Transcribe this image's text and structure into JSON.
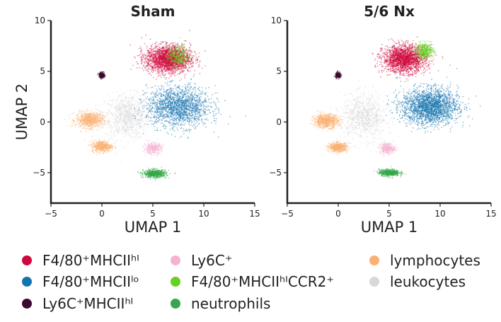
{
  "chart_data": [
    {
      "type": "scatter",
      "title": "Sham",
      "xlabel": "UMAP 1",
      "ylabel": "UMAP 2",
      "xlim": [
        -5,
        15
      ],
      "ylim": [
        -8,
        10
      ],
      "xticks": [
        -5,
        0,
        5,
        10,
        15
      ],
      "yticks": [
        -5,
        0,
        5,
        10
      ],
      "grid": false,
      "clusters": [
        {
          "series": "F4/80⁺MHCIIʰᴵ",
          "center": [
            6.5,
            6.2
          ],
          "spread": [
            2.0,
            1.2
          ],
          "density": 1.0
        },
        {
          "series": "F4/80⁺MHCIIˡᵒ",
          "center": [
            7.5,
            1.5
          ],
          "spread": [
            2.8,
            1.8
          ],
          "density": 0.8
        },
        {
          "series": "Ly6C⁺MHCIIʰᴵ",
          "center": [
            0.0,
            4.6
          ],
          "spread": [
            0.25,
            0.25
          ],
          "density": 0.3
        },
        {
          "series": "Ly6C⁺",
          "center": [
            5.0,
            -2.6
          ],
          "spread": [
            0.8,
            0.5
          ],
          "density": 0.4
        },
        {
          "series": "F4/80⁺MHCIIʰᴵCCR2⁺",
          "center": [
            7.5,
            6.5
          ],
          "spread": [
            1.0,
            0.9
          ],
          "density": 0.4
        },
        {
          "series": "neutrophils",
          "center": [
            5.2,
            -5.1
          ],
          "spread": [
            1.0,
            0.35
          ],
          "density": 0.8
        },
        {
          "series": "lymphocytes",
          "center": [
            -1.2,
            0.2
          ],
          "spread": [
            1.2,
            0.7
          ],
          "density": 0.9
        },
        {
          "series": "lymphocytes",
          "center": [
            0.0,
            -2.4
          ],
          "spread": [
            0.9,
            0.5
          ],
          "density": 0.6
        },
        {
          "series": "leukocytes",
          "center": [
            2.5,
            0.5
          ],
          "spread": [
            2.0,
            2.0
          ],
          "density": 0.4
        }
      ]
    },
    {
      "type": "scatter",
      "title": "5/6 Nx",
      "xlabel": "UMAP 1",
      "ylabel": "",
      "xlim": [
        -5,
        15
      ],
      "ylim": [
        -8,
        10
      ],
      "xticks": [
        -5,
        0,
        5,
        10,
        15
      ],
      "yticks": [
        -5,
        0,
        5,
        10
      ],
      "grid": false,
      "clusters": [
        {
          "series": "F4/80⁺MHCIIʰᴵ",
          "center": [
            6.5,
            6.2
          ],
          "spread": [
            1.9,
            1.2
          ],
          "density": 0.9
        },
        {
          "series": "F4/80⁺MHCIIˡᵒ",
          "center": [
            9.0,
            1.5
          ],
          "spread": [
            2.5,
            1.6
          ],
          "density": 1.0
        },
        {
          "series": "Ly6C⁺MHCIIʰᴵ",
          "center": [
            0.0,
            4.6
          ],
          "spread": [
            0.25,
            0.25
          ],
          "density": 0.3
        },
        {
          "series": "Ly6C⁺",
          "center": [
            4.8,
            -2.6
          ],
          "spread": [
            0.7,
            0.5
          ],
          "density": 0.4
        },
        {
          "series": "F4/80⁺MHCIIʰᴵCCR2⁺",
          "center": [
            8.5,
            7.0
          ],
          "spread": [
            0.8,
            0.7
          ],
          "density": 0.5
        },
        {
          "series": "neutrophils",
          "center": [
            5.0,
            -5.0
          ],
          "spread": [
            0.9,
            0.3
          ],
          "density": 0.7
        },
        {
          "series": "lymphocytes",
          "center": [
            -1.2,
            0.1
          ],
          "spread": [
            1.1,
            0.6
          ],
          "density": 0.9
        },
        {
          "series": "lymphocytes",
          "center": [
            0.0,
            -2.5
          ],
          "spread": [
            0.8,
            0.4
          ],
          "density": 0.7
        },
        {
          "series": "leukocytes",
          "center": [
            2.5,
            0.5
          ],
          "spread": [
            2.0,
            2.0
          ],
          "density": 0.4
        }
      ]
    }
  ],
  "legend": {
    "placement": "bottom",
    "items": [
      {
        "label": "F4/80⁺MHCIIʰᴵ",
        "color": "#d0073c"
      },
      {
        "label": "F4/80⁺MHCIIˡᵒ",
        "color": "#1474b0"
      },
      {
        "label": "Ly6C⁺MHCIIʰᴵ",
        "color": "#3b0a2e"
      },
      {
        "label": "Ly6C⁺",
        "color": "#f5b3d3"
      },
      {
        "label": "F4/80⁺MHCIIʰᴵCCR2⁺",
        "color": "#66d121"
      },
      {
        "label": "neutrophils",
        "color": "#35a849"
      },
      {
        "label": "lymphocytes",
        "color": "#fbb173"
      },
      {
        "label": "leukocytes",
        "color": "#d8d8d8"
      }
    ]
  }
}
